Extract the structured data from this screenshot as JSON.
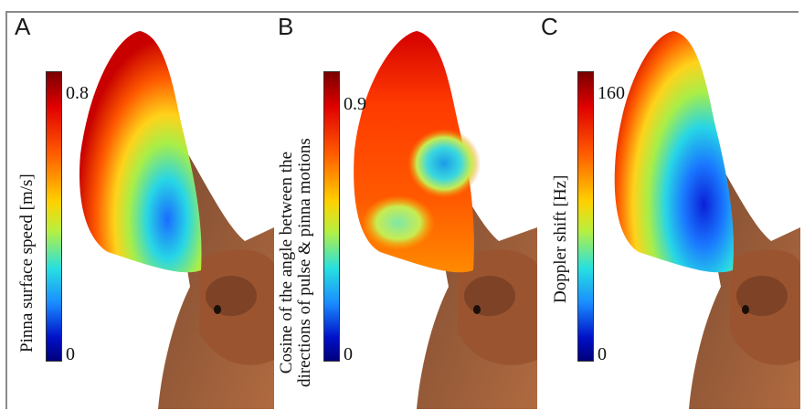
{
  "panels": [
    {
      "letter": "A",
      "colorbar": {
        "max_label": "0.8",
        "min_label": "0",
        "label": [
          "Pinna surface speed [m/s]"
        ]
      }
    },
    {
      "letter": "B",
      "colorbar": {
        "max_label": "0.9",
        "min_label": "0",
        "label": [
          "Cosine of the angle between the",
          "directions of pulse & pinna motions"
        ]
      }
    },
    {
      "letter": "C",
      "colorbar": {
        "max_label": "160",
        "min_label": "0",
        "label": [
          "Doppler shift [Hz]"
        ]
      }
    }
  ],
  "colormap": [
    "#7a0000",
    "#e00000",
    "#ff5a00",
    "#ffd200",
    "#b8f040",
    "#27e0e0",
    "#1a8cff",
    "#0010c8",
    "#00007a"
  ]
}
